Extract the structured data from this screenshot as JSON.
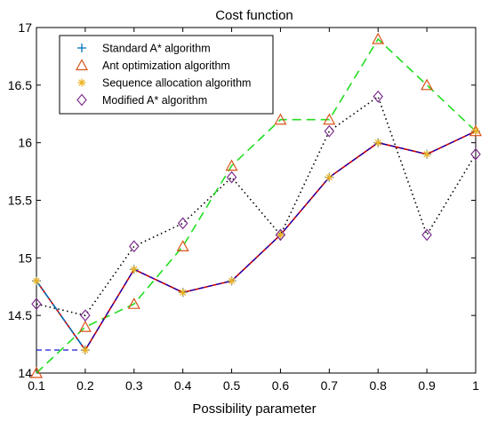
{
  "chart_data": {
    "type": "line",
    "title": "Cost function",
    "xlabel": "Possibility parameter",
    "ylabel": "",
    "xlim": [
      0.1,
      1
    ],
    "ylim": [
      14,
      17
    ],
    "xticks": [
      "0.1",
      "0.2",
      "0.3",
      "0.4",
      "0.5",
      "0.6",
      "0.7",
      "0.8",
      "0.9",
      "1"
    ],
    "yticks": [
      "14",
      "14.5",
      "15",
      "15.5",
      "16",
      "16.5",
      "17"
    ],
    "legend_position": "top-left",
    "x": [
      0.1,
      0.2,
      0.3,
      0.4,
      0.5,
      0.6,
      0.7,
      0.8,
      0.9,
      1.0
    ],
    "series": [
      {
        "name": "Standard A* algorithm",
        "marker": "plus",
        "line": "dashdot",
        "color": "#0072BD",
        "values": [
          14.8,
          14.2,
          14.9,
          14.7,
          14.8,
          15.2,
          15.7,
          16.0,
          15.9,
          16.1
        ]
      },
      {
        "name": "Ant optimization algorithm",
        "marker": "triangle",
        "line": "dashed",
        "color": "#D95319",
        "line_color": "#22DD22",
        "values": [
          14.0,
          14.4,
          14.6,
          15.1,
          15.8,
          16.2,
          16.2,
          16.9,
          16.5,
          16.1
        ]
      },
      {
        "name": "Sequence allocation algorithm",
        "marker": "asterisk",
        "line": "solid",
        "color": "#EDB120",
        "line_color": "#CC0000",
        "values": [
          14.8,
          14.2,
          14.9,
          14.7,
          14.8,
          15.2,
          15.7,
          16.0,
          15.9,
          16.1
        ]
      },
      {
        "name": "Modified A* algorithm",
        "marker": "diamond",
        "line": "dotted",
        "color": "#7E2F8E",
        "line_color": "#000000",
        "values": [
          14.6,
          14.5,
          15.1,
          15.3,
          15.7,
          15.2,
          16.1,
          16.4,
          15.2,
          15.9
        ]
      }
    ],
    "extra_segments": [
      {
        "note_series": "Standard A* algorithm",
        "line_color": "#0000CC",
        "x": [
          0.1,
          0.2,
          0.3,
          0.4,
          0.5,
          0.6,
          0.7,
          0.8,
          0.9,
          1.0
        ],
        "values": [
          14.2,
          14.2,
          14.9,
          14.7,
          14.8,
          15.2,
          15.7,
          16.0,
          15.9,
          16.1
        ]
      }
    ]
  }
}
